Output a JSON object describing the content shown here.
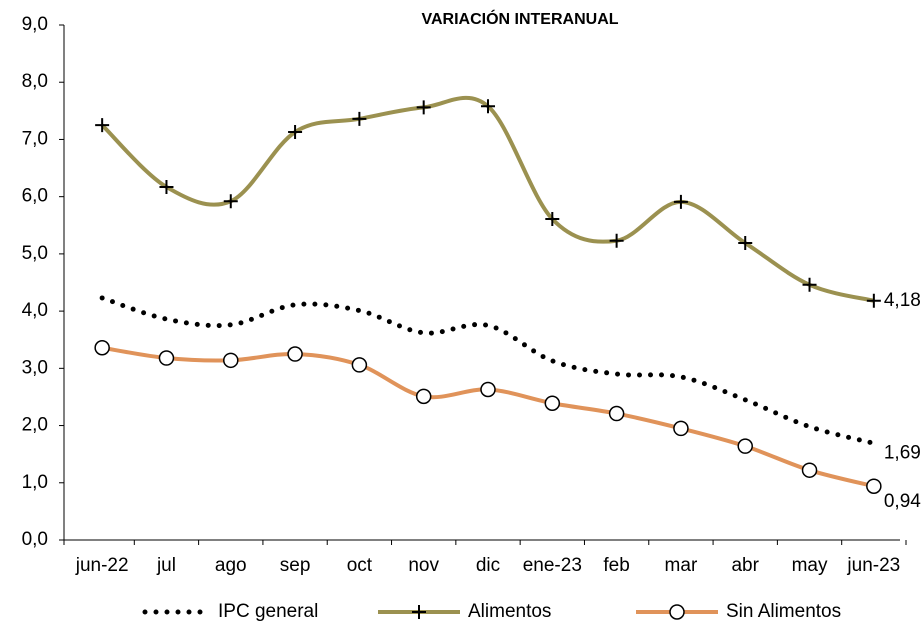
{
  "chart_data": {
    "type": "line",
    "title": "VARIACIÓN INTERANUAL",
    "categories": [
      "jun-22",
      "jul",
      "ago",
      "sep",
      "oct",
      "nov",
      "dic",
      "ene-23",
      "feb",
      "mar",
      "abr",
      "may",
      "jun-23"
    ],
    "series": [
      {
        "name": "IPC general",
        "color": "#000000",
        "style": "dotted",
        "values": [
          4.23,
          3.86,
          3.76,
          4.11,
          4.01,
          3.62,
          3.75,
          3.13,
          2.9,
          2.85,
          2.45,
          1.98,
          1.69
        ],
        "value_labels": [
          null,
          null,
          null,
          null,
          null,
          null,
          null,
          null,
          null,
          null,
          null,
          null,
          "1,69"
        ],
        "label_color": "#000000"
      },
      {
        "name": "Alimentos",
        "color": "#9b9150",
        "marker": "plus",
        "values": [
          7.25,
          6.17,
          5.92,
          7.13,
          7.36,
          7.56,
          7.58,
          5.61,
          5.23,
          5.91,
          5.19,
          4.46,
          4.18
        ],
        "value_labels": [
          null,
          null,
          null,
          null,
          null,
          null,
          null,
          null,
          null,
          null,
          null,
          null,
          "4,18"
        ],
        "label_color": "#8c8a1e"
      },
      {
        "name": "Sin Alimentos",
        "color": "#e0935a",
        "marker": "circle",
        "values": [
          3.36,
          3.18,
          3.14,
          3.25,
          3.06,
          2.51,
          2.63,
          2.39,
          2.21,
          1.95,
          1.64,
          1.22,
          0.94
        ],
        "value_labels": [
          null,
          null,
          null,
          null,
          null,
          null,
          null,
          null,
          null,
          null,
          null,
          null,
          "0,94"
        ],
        "label_color": "#e8a57a"
      }
    ],
    "ylim": [
      0,
      9
    ],
    "yticks": [
      {
        "value": 0,
        "label": "0,0"
      },
      {
        "value": 1,
        "label": "1,0"
      },
      {
        "value": 2,
        "label": "2,0"
      },
      {
        "value": 3,
        "label": "3,0"
      },
      {
        "value": 4,
        "label": "4,0"
      },
      {
        "value": 5,
        "label": "5,0"
      },
      {
        "value": 6,
        "label": "6,0"
      },
      {
        "value": 7,
        "label": "7,0"
      },
      {
        "value": 8,
        "label": "8,0"
      },
      {
        "value": 9,
        "label": "9,0"
      }
    ],
    "grid": false,
    "legend": "bottom"
  }
}
